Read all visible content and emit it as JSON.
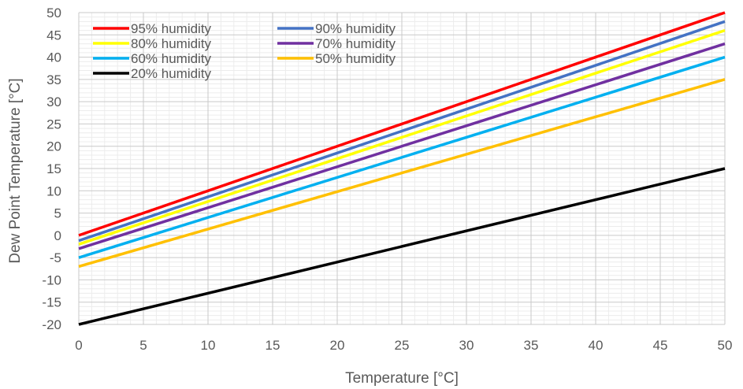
{
  "chart_data": {
    "type": "line",
    "xlabel": "Temperature [°C]",
    "ylabel": "Dew Point Temperature [°C]",
    "xlim": [
      0,
      50
    ],
    "ylim": [
      -20,
      50
    ],
    "x_ticks": [
      "0",
      "5",
      "10",
      "15",
      "20",
      "25",
      "30",
      "35",
      "40",
      "45",
      "50"
    ],
    "y_ticks": [
      "-20",
      "-15",
      "-10",
      "-5",
      "0",
      "5",
      "10",
      "15",
      "20",
      "25",
      "30",
      "35",
      "40",
      "45",
      "50"
    ],
    "grid": "major and minor",
    "legend_position": "top-left",
    "series": [
      {
        "name": "95% humidity",
        "color": "#ff0000",
        "x": [
          0,
          50
        ],
        "y": [
          0,
          50
        ]
      },
      {
        "name": "90% humidity",
        "color": "#4472c4",
        "x": [
          0,
          50
        ],
        "y": [
          -1.2,
          48
        ]
      },
      {
        "name": "80% humidity",
        "color": "#ffff00",
        "x": [
          0,
          50
        ],
        "y": [
          -2,
          46
        ]
      },
      {
        "name": "70% humidity",
        "color": "#7030a0",
        "x": [
          0,
          50
        ],
        "y": [
          -3,
          43
        ]
      },
      {
        "name": "60% humidity",
        "color": "#00b0f0",
        "x": [
          0,
          50
        ],
        "y": [
          -5,
          40
        ]
      },
      {
        "name": "50% humidity",
        "color": "#ffc000",
        "x": [
          0,
          50
        ],
        "y": [
          -7,
          35
        ]
      },
      {
        "name": "20% humidity",
        "color": "#000000",
        "x": [
          0,
          50
        ],
        "y": [
          -20,
          15
        ]
      }
    ]
  }
}
